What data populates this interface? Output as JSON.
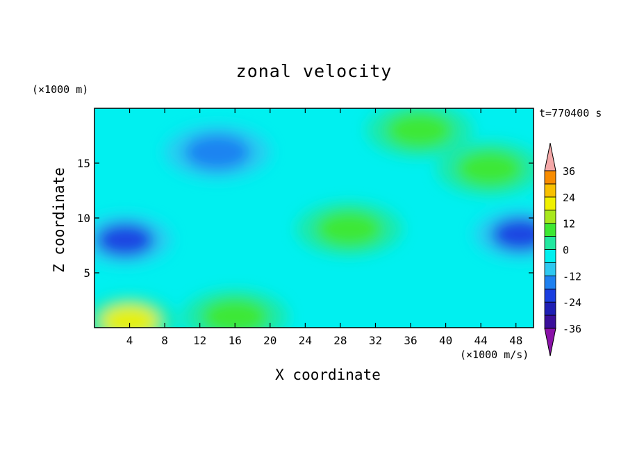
{
  "chart_data": {
    "type": "heatmap",
    "title": "zonal velocity",
    "xlabel": "X coordinate",
    "ylabel": "Z coordinate",
    "x_unit": "(×1000 m/s)",
    "y_unit": "(×1000 m)",
    "time_label": "t=770400 s",
    "xlim": [
      0,
      50
    ],
    "ylim": [
      0,
      20
    ],
    "x_ticks": [
      4,
      8,
      12,
      16,
      20,
      24,
      28,
      32,
      36,
      40,
      44,
      48
    ],
    "y_ticks": [
      5,
      10,
      15
    ],
    "colorbar": {
      "levels": [
        -36,
        -30,
        -24,
        -18,
        -12,
        -6,
        0,
        6,
        12,
        18,
        24,
        30,
        36
      ],
      "tick_labels": [
        36,
        24,
        12,
        0,
        -12,
        -24,
        -36
      ],
      "colors": [
        "#7a0fa0",
        "#3a0f9a",
        "#1f1fb4",
        "#1a3ee0",
        "#1e80f0",
        "#2ec8f0",
        "#00f0f0",
        "#22e8a0",
        "#3ee832",
        "#a8e81c",
        "#f0f000",
        "#f8c000",
        "#f88c00",
        "#f05a10",
        "#e82020",
        "#f4a8a8"
      ],
      "under_color": "#8a12a8",
      "over_color": "#f4a8a8"
    },
    "features": [
      {
        "x": 3.5,
        "z": 8.0,
        "value": -22
      },
      {
        "x": 48.5,
        "z": 8.5,
        "value": -20
      },
      {
        "x": 4.0,
        "z": 0.6,
        "value": 20
      },
      {
        "x": 16.0,
        "z": 1.0,
        "value": 10
      },
      {
        "x": 29.0,
        "z": 9.0,
        "value": 10
      },
      {
        "x": 45.0,
        "z": 14.5,
        "value": 9
      },
      {
        "x": 37.0,
        "z": 18.0,
        "value": 8
      },
      {
        "x": 14.0,
        "z": 16.0,
        "value": -14
      }
    ]
  }
}
